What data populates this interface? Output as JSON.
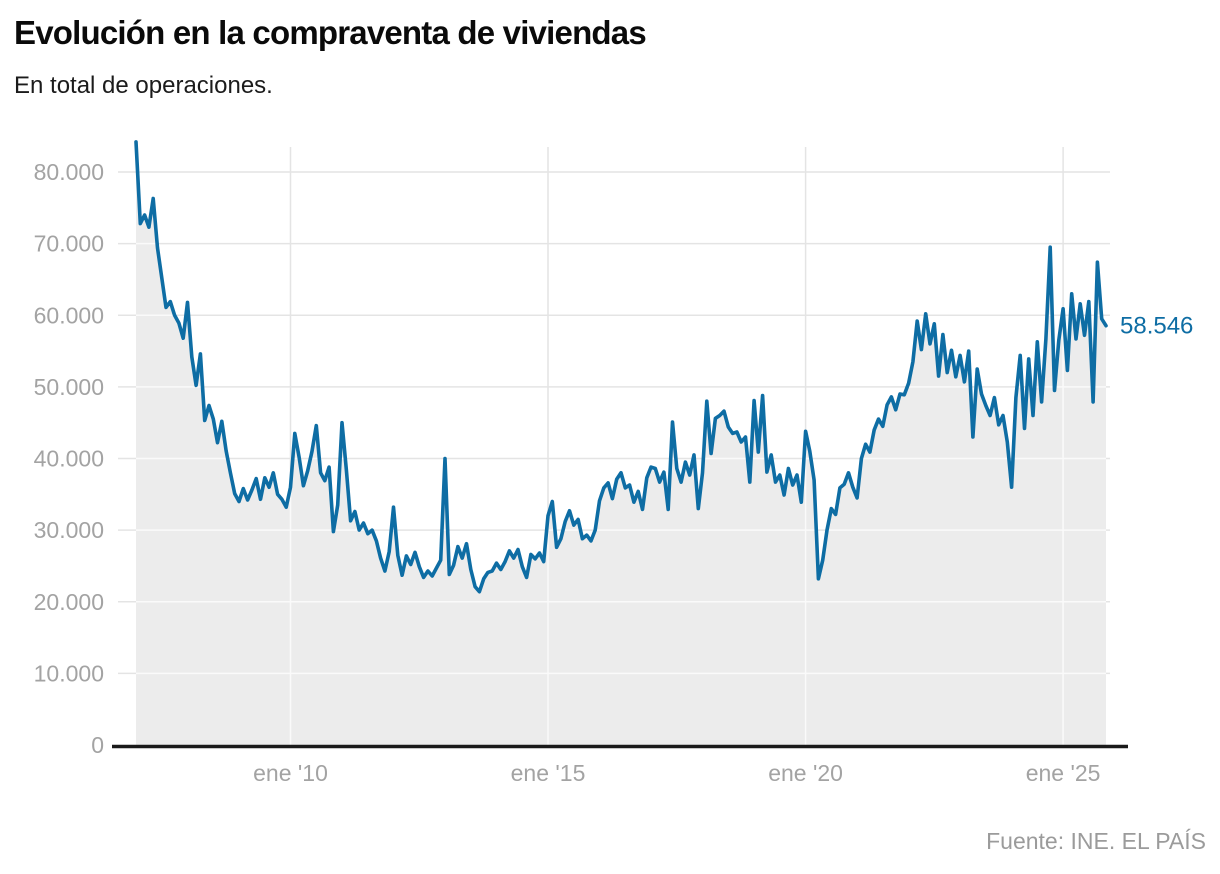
{
  "header": {
    "title": "Evolución en la compraventa de viviendas",
    "subtitle": "En total de operaciones."
  },
  "footer": {
    "source": "Fuente: INE. EL PAÍS"
  },
  "chart_data": {
    "type": "line",
    "title": "Evolución en la compraventa de viviendas",
    "subtitle": "En total de operaciones.",
    "ylabel": "",
    "xlabel": "",
    "unit": "operaciones",
    "frequency": "monthly",
    "start_month": "2007-01",
    "end_month": "2025-11",
    "grid": true,
    "legend_position": "none",
    "end_label": "58.546",
    "end_value": 58546,
    "y_axis": {
      "min": 0,
      "max": 80000,
      "tick_step": 10000,
      "tick_values": [
        0,
        10000,
        20000,
        30000,
        40000,
        50000,
        60000,
        70000,
        80000
      ],
      "tick_labels": [
        "0",
        "10.000",
        "20.000",
        "30.000",
        "40.000",
        "50.000",
        "60.000",
        "70.000",
        "80.000"
      ]
    },
    "x_axis": {
      "tick_labels": [
        "ene '10",
        "ene '15",
        "ene '20",
        "ene '25"
      ],
      "tick_months": [
        "2010-01",
        "2015-01",
        "2020-01",
        "2025-01"
      ]
    },
    "colors": {
      "line": "#0e6da4",
      "area": "#ececec",
      "grid": "#e4e4e4",
      "grid_on_area": "#fafafa",
      "axis": "#1a1a1a",
      "tick_label": "#a3a3a3",
      "end_label": "#0e6da4"
    },
    "values": [
      84200,
      72800,
      74000,
      72300,
      76300,
      69400,
      65200,
      61100,
      61900,
      60000,
      58900,
      56800,
      61800,
      54200,
      50200,
      54600,
      45300,
      47400,
      45500,
      42200,
      45200,
      41100,
      38000,
      35100,
      34000,
      35800,
      34200,
      35600,
      37200,
      34300,
      37300,
      36000,
      38000,
      35000,
      34300,
      33200,
      36000,
      43500,
      40200,
      36200,
      38300,
      41000,
      44600,
      38000,
      36900,
      38800,
      29800,
      33500,
      45000,
      38500,
      31300,
      32600,
      30000,
      31000,
      29500,
      30000,
      28500,
      26100,
      24300,
      27000,
      33200,
      26500,
      23700,
      26400,
      25200,
      26900,
      24900,
      23400,
      24300,
      23600,
      24700,
      25800,
      40000,
      23800,
      25100,
      27700,
      26100,
      28100,
      24500,
      22100,
      21400,
      23200,
      24100,
      24300,
      25400,
      24500,
      25600,
      27100,
      26100,
      27300,
      24900,
      23400,
      26600,
      26000,
      26800,
      25600,
      32000,
      34000,
      27600,
      28800,
      31200,
      32700,
      30700,
      31500,
      28800,
      29300,
      28500,
      30000,
      34100,
      35900,
      36600,
      34400,
      37100,
      38000,
      35900,
      36300,
      33900,
      35400,
      32900,
      37300,
      38800,
      38600,
      36700,
      38100,
      32900,
      45100,
      38600,
      36700,
      39500,
      37700,
      40500,
      33000,
      38000,
      48000,
      40700,
      45600,
      46000,
      46600,
      44400,
      43500,
      43700,
      42300,
      43000,
      36700,
      48100,
      40900,
      48800,
      38100,
      40500,
      36700,
      37700,
      34900,
      38600,
      36300,
      37700,
      33900,
      43800,
      41000,
      37000,
      23200,
      25800,
      30000,
      33000,
      32200,
      35900,
      36400,
      38000,
      36000,
      34500,
      40000,
      42000,
      40900,
      44000,
      45500,
      44500,
      47500,
      48600,
      46800,
      49000,
      48900,
      50500,
      53500,
      59200,
      55200,
      60200,
      56000,
      58800,
      51500,
      57300,
      52000,
      55100,
      51400,
      54400,
      50700,
      55000,
      43000,
      52500,
      49000,
      47400,
      46000,
      48500,
      44700,
      46000,
      42300,
      36000,
      48500,
      54400,
      44200,
      53900,
      46000,
      56300,
      47900,
      56700,
      69500,
      49500,
      56500,
      60900,
      52300,
      63000,
      56700,
      61600,
      57200,
      61900,
      47900,
      67400,
      59500,
      58546
    ]
  }
}
